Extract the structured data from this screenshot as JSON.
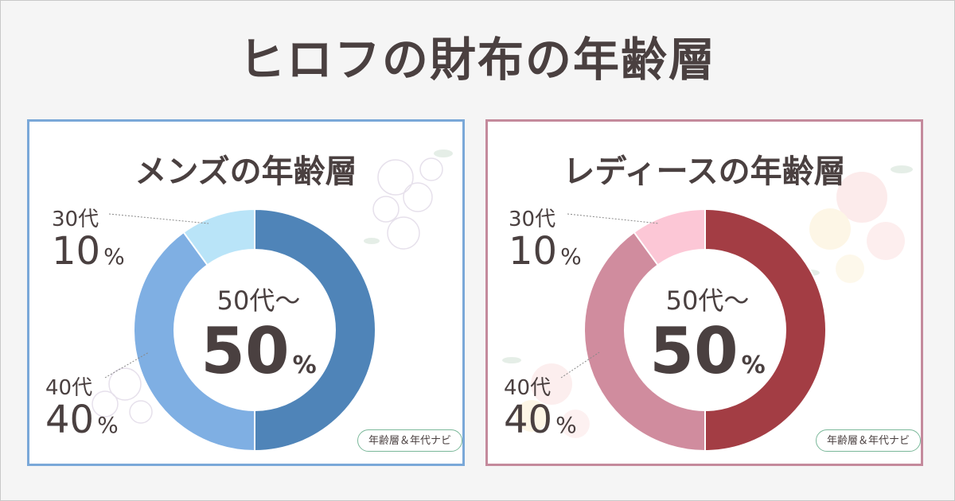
{
  "page": {
    "title": "ヒロフの財布の年齢層"
  },
  "chart_data": [
    {
      "type": "pie",
      "title": "メンズの年齢層",
      "center_label": "50代～",
      "center_value": "50",
      "center_unit": "%",
      "slices": [
        {
          "label": "50代～",
          "value": 50,
          "color": "#4f84b8"
        },
        {
          "label": "40代",
          "value": 40,
          "color": "#7fafe3"
        },
        {
          "label": "30代",
          "value": 10,
          "color": "#b9e4f8"
        }
      ],
      "annotations": [
        {
          "age": "30代",
          "value": "10",
          "unit": "%"
        },
        {
          "age": "40代",
          "value": "40",
          "unit": "%"
        }
      ],
      "badge": "年齢層＆年代ナビ"
    },
    {
      "type": "pie",
      "title": "レディースの年齢層",
      "center_label": "50代～",
      "center_value": "50",
      "center_unit": "%",
      "slices": [
        {
          "label": "50代～",
          "value": 50,
          "color": "#a33d44"
        },
        {
          "label": "40代",
          "value": 40,
          "color": "#d08c9e"
        },
        {
          "label": "30代",
          "value": 10,
          "color": "#fcc7d6"
        }
      ],
      "annotations": [
        {
          "age": "30代",
          "value": "10",
          "unit": "%"
        },
        {
          "age": "40代",
          "value": "40",
          "unit": "%"
        }
      ],
      "badge": "年齢層＆年代ナビ"
    }
  ]
}
